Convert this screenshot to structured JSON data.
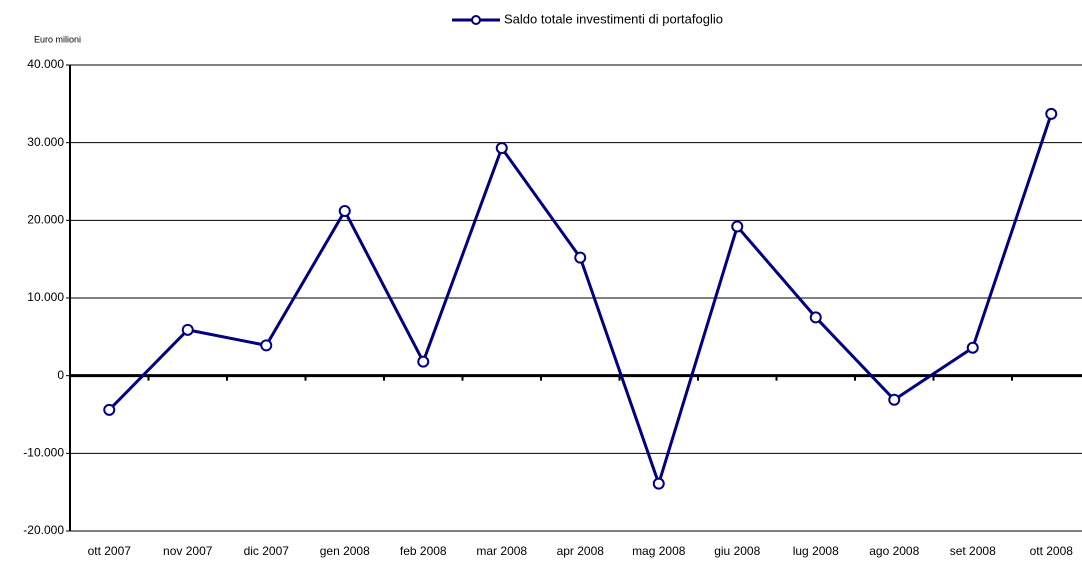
{
  "chart_data": {
    "type": "line",
    "y_label": "Euro milioni",
    "categories": [
      "ott 2007",
      "nov 2007",
      "dic 2007",
      "gen 2008",
      "feb 2008",
      "mar 2008",
      "apr 2008",
      "mag 2008",
      "giu 2008",
      "lug 2008",
      "ago 2008",
      "set 2008",
      "ott 2008"
    ],
    "series": [
      {
        "name": "Saldo totale investimenti di portafoglio",
        "color": "#000080",
        "values": [
          -4400,
          5900,
          3900,
          21200,
          1800,
          29300,
          15200,
          -13900,
          19200,
          7500,
          -3100,
          3600,
          33700
        ]
      }
    ],
    "ylim": [
      -20000,
      40000
    ],
    "yticks": [
      {
        "value": -20000,
        "label": "-20.000"
      },
      {
        "value": -10000,
        "label": "-10.000"
      },
      0,
      {
        "value": 10000,
        "label": "10.000"
      },
      {
        "value": 20000,
        "label": "20.000"
      },
      {
        "value": 30000,
        "label": "30.000"
      },
      {
        "value": 40000,
        "label": "40.000"
      }
    ],
    "grid": true,
    "legend": "top"
  }
}
